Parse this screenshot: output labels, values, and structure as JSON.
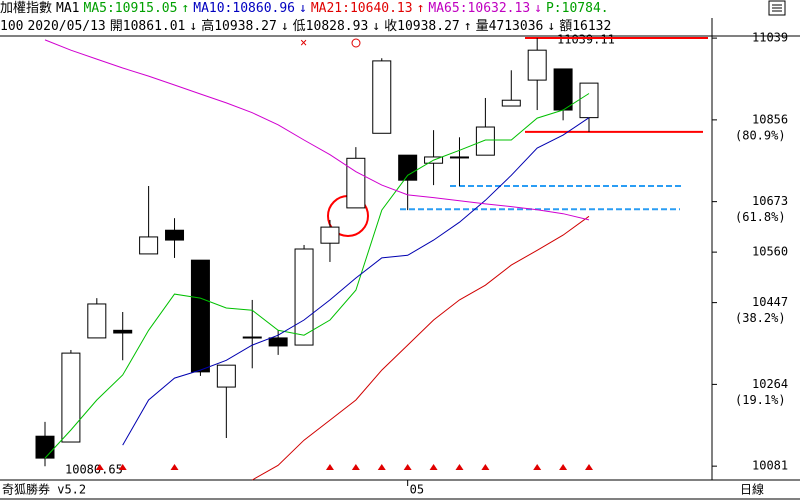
{
  "header": {
    "row1": [
      {
        "text": "加權指數",
        "color": "#000000"
      },
      {
        "text": "MA1",
        "color": "#000000"
      },
      {
        "text": "MA5:10915.05",
        "color": "#00a000"
      },
      {
        "text": "↑",
        "color": "#00a000"
      },
      {
        "text": "MA10:10860.96",
        "color": "#0000c0"
      },
      {
        "text": "↓",
        "color": "#0000c0"
      },
      {
        "text": "MA21:10640.13",
        "color": "#e00000"
      },
      {
        "text": "↑",
        "color": "#e00000"
      },
      {
        "text": "MA65:10632.13",
        "color": "#c000c0"
      },
      {
        "text": "↓",
        "color": "#c000c0"
      },
      {
        "text": "P:10784.",
        "color": "#00a000"
      }
    ],
    "row2": [
      {
        "text": "100",
        "color": "#000000"
      },
      {
        "text": "2020/05/13",
        "color": "#000000"
      },
      {
        "text": "開10861.01",
        "color": "#000000"
      },
      {
        "text": "↓",
        "color": "#000000"
      },
      {
        "text": "高10938.27",
        "color": "#000000"
      },
      {
        "text": "↓",
        "color": "#000000"
      },
      {
        "text": "低10828.93",
        "color": "#000000"
      },
      {
        "text": "↓",
        "color": "#000000"
      },
      {
        "text": "收10938.27",
        "color": "#000000"
      },
      {
        "text": "↑",
        "color": "#000000"
      },
      {
        "text": "量4713036",
        "color": "#000000"
      },
      {
        "text": "↓",
        "color": "#000000"
      },
      {
        "text": "額16132",
        "color": "#000000"
      }
    ]
  },
  "footer": {
    "left": "奇狐勝券 v5.2",
    "right": "日線"
  },
  "chart_data": {
    "type": "candlestick",
    "categories": [
      null,
      null,
      null,
      null,
      null,
      null,
      null,
      null,
      null,
      null,
      null,
      null,
      null,
      null,
      "05",
      null,
      null,
      null,
      null,
      null,
      null,
      null
    ],
    "open": [
      10148,
      10135,
      10368,
      10385,
      10556,
      10609,
      10542,
      10258,
      10368,
      10368,
      10352,
      10580,
      10659,
      10826,
      10777,
      10759,
      10773,
      10777,
      10887,
      10945,
      10970,
      10861.01
    ],
    "high": [
      10180,
      10341,
      10457,
      10426,
      10708,
      10636,
      10542,
      10307,
      10453,
      10385,
      10576,
      10632,
      10795,
      10994,
      10777,
      10833,
      10817,
      10905,
      10967,
      11039.11,
      10970,
      10938.27
    ],
    "low": [
      10080.65,
      10135,
      10368,
      10318,
      10556,
      10547,
      10283,
      10144,
      10300,
      10330,
      10352,
      10538,
      10659,
      10826,
      10654,
      10710,
      10708,
      10777,
      10887,
      10878,
      10855,
      10828.93
    ],
    "close": [
      10099,
      10334,
      10444,
      10379,
      10594,
      10587,
      10292,
      10307,
      10370,
      10350,
      10567,
      10616,
      10770,
      10988,
      10721,
      10773,
      10771,
      10840,
      10900,
      11012,
      10878,
      10938.27
    ],
    "up_color": "#ffffff",
    "down_color": "#000000",
    "overlays": [
      {
        "color": "#00c000",
        "values": [
          10099,
          10162,
          10229,
          10285,
          10385,
          10466,
          10457,
          10435,
          10430,
          10385,
          10374,
          10408,
          10475,
          10654,
          10732,
          10766,
          10788,
          10811,
          10811,
          10860,
          10878,
          10915.05
        ]
      },
      {
        "color": "#0000b0",
        "values": [
          null,
          null,
          null,
          10128,
          10229,
          10278,
          10296,
          10318,
          10352,
          10374,
          10408,
          10453,
          10502,
          10547,
          10553,
          10587,
          10627,
          10676,
          10732,
          10793,
          10822,
          10860.96
        ]
      },
      {
        "color": "#d00000",
        "values": [
          null,
          null,
          null,
          null,
          null,
          null,
          null,
          null,
          10050,
          10083,
          10139,
          10184,
          10229,
          10296,
          10352,
          10408,
          10453,
          10486,
          10531,
          10564,
          10598,
          10640.13
        ]
      },
      {
        "color": "#d000d0",
        "values": [
          11035,
          11012,
          10992,
          10972,
          10954,
          10934,
          10914,
          10894,
          10872,
          10845,
          10811,
          10778,
          10740,
          10710,
          10688,
          10682,
          10675,
          10668,
          10662,
          10655,
          10646,
          10632.13
        ]
      }
    ],
    "hlines": [
      {
        "value": 11039.11,
        "color": "#ff0000",
        "dashed": false
      },
      {
        "value": 10829,
        "color": "#ff0000",
        "dashed": false
      },
      {
        "value": 10708,
        "color": "#2a9df4",
        "dashed": true
      },
      {
        "value": 10656,
        "color": "#2a9df4",
        "dashed": true
      }
    ],
    "annotations": [
      {
        "text": "11039.11"
      },
      {
        "text": "10080.65"
      }
    ],
    "ylim": [
      10050,
      11084
    ],
    "yticks": [
      11039,
      10856,
      10673,
      10560,
      10447,
      10264,
      10081
    ],
    "fib_labels": [
      {
        "value": 10856,
        "label": "(80.9%)"
      },
      {
        "value": 10673,
        "label": "(61.8%)"
      },
      {
        "value": 10447,
        "label": "(38.2%)"
      },
      {
        "value": 10264,
        "label": "(19.1%)"
      }
    ]
  }
}
